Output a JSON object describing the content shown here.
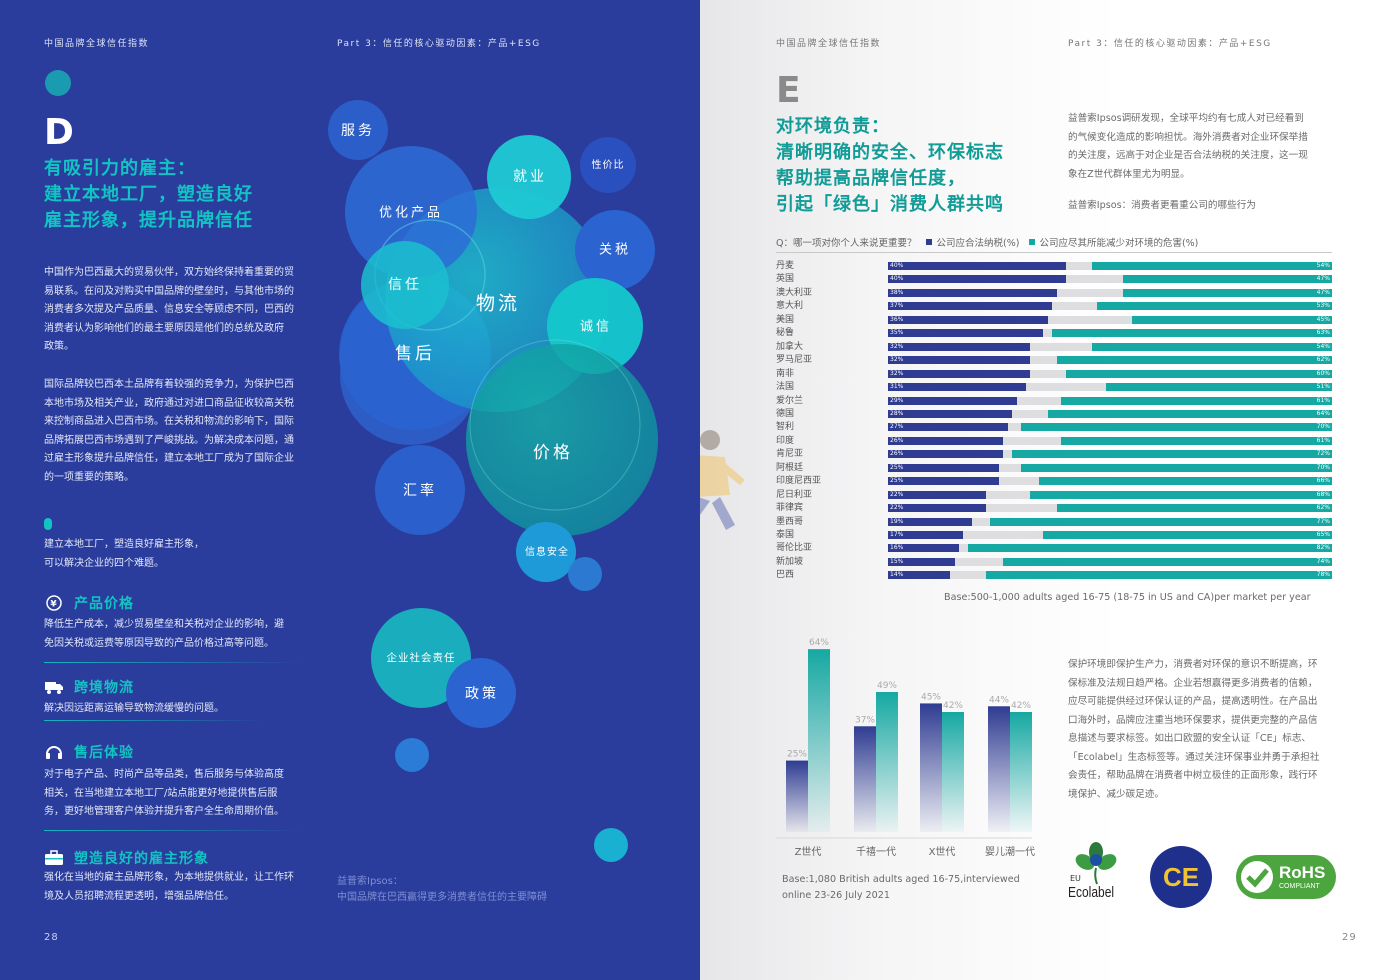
{
  "left_page": {
    "header_title": "中国品牌全球信任指数",
    "header_part": "Part 3：信任的核心驱动因素：产品+ESG",
    "letter": "D",
    "section_title": [
      "有吸引力的雇主：",
      "建立本地工厂，塑造良好",
      "雇主形象，提升品牌信任"
    ],
    "para1": [
      "中国作为巴西最大的贸易伙伴，双方始终保持着重要的贸",
      "易联系。在问及对购买中国品牌的壁垒时，与其他市场的",
      "消费者多次提及产品质量、信息安全等顾虑不同，巴西的",
      "消费者认为影响他们的最主要原因是他们的总统及政府",
      "政策。"
    ],
    "para2": [
      "国际品牌较巴西本土品牌有着较强的竞争力，为保护巴西",
      "本地市场及相关产业，政府通过对进口商品征收较高关税",
      "来控制商品进入巴西市场。在关税和物流的影响下，国际",
      "品牌拓展巴西市场遇到了严峻挑战。为解决成本问题，通",
      "过雇主形象提升品牌信任，建立本地工厂成为了国际企业",
      "的一项重要的策略。"
    ],
    "para3": [
      "建立本地工厂，塑造良好雇主形象，",
      "可以解决企业的四个难题。"
    ],
    "items": [
      {
        "icon": "yuan-icon",
        "title": "产品价格",
        "text": [
          "降低生产成本，减少贸易壁垒和关税对企业的影响，避",
          "免因关税或运费等原因导致的产品价格过高等问题。"
        ]
      },
      {
        "icon": "truck-icon",
        "title": "跨境物流",
        "text": [
          "解决因远距离运输导致物流缓慢的问题。"
        ]
      },
      {
        "icon": "headset-icon",
        "title": "售后体验",
        "text": [
          "对于电子产品、时尚产品等品类，售后服务与体验高度",
          "相关，在当地建立本地工厂/站点能更好地提供售后服",
          "务，更好地管理客户体验并提升客户全生命周期价值。"
        ]
      },
      {
        "icon": "briefcase-icon",
        "title": "塑造良好的雇主形象",
        "text": [
          "强化在当地的雇主品牌形象，为本地提供就业，让工作环",
          "境及人员招聘流程更透明，增强品牌信任。"
        ]
      }
    ],
    "bubbles": [
      "服务",
      "就业",
      "性价比",
      "优化产品",
      "关税",
      "信任",
      "物流",
      "诚信",
      "售后",
      "价格",
      "汇率",
      "信息安全",
      "企业社会责任",
      "政策"
    ],
    "source": [
      "益普索Ipsos：",
      "中国品牌在巴西赢得更多消费者信任的主要障碍"
    ],
    "page_number": "28",
    "colors": {
      "background": "#2a3d9c",
      "accent": "#13c3c3"
    }
  },
  "right_page": {
    "header_title": "中国品牌全球信任指数",
    "header_part": "Part 3：信任的核心驱动因素：产品+ESG",
    "letter": "E",
    "section_title": [
      "对环境负责：",
      "清晰明确的安全、环保标志",
      "帮助提高品牌信任度，",
      "引起「绿色」消费人群共鸣"
    ],
    "intro": [
      "益普索Ipsos调研发现，全球平均约有七成人对已经看到",
      "的气候变化造成的影响担忧。海外消费者对企业环保举措",
      "的关注度，远高于对企业是否合法纳税的关注度，这一现",
      "象在Z世代群体里尤为明显。"
    ],
    "chart_caption": "益普索Ipsos：消费者更看重公司的哪些行为",
    "question": "Q：哪一项对你个人来说更重要？",
    "legend": [
      "公司应合法纳税(%)",
      "公司应尽其所能减少对环境的危害(%)"
    ],
    "base1": "Base:500-1,000 adults aged 16-75 (18-75 in US and CA)per market per year",
    "base2": [
      "Base:1,080 British adults aged 16-75,interviewed",
      "online 23-26 July 2021"
    ],
    "para": [
      "保护环境即保护生产力，消费者对环保的意识不断提高，环",
      "保标准及法规日趋严格。企业若想赢得更多消费者的信赖，",
      "应尽可能提供经过环保认证的产品，提高透明性。在产品出",
      "口海外时，品牌应注重当地环保要求，提供更完整的产品信",
      "息描述与要求标签。如出口欧盟的安全认证「CE」标志、",
      "「Ecolabel」生态标签等。通过关注环保事业并勇于承担社",
      "会责任，帮助品牌在消费者中树立极佳的正面形象，践行环",
      "境保护、减少碳足迹。"
    ],
    "logos": {
      "ecolabel_eu": "EU",
      "ecolabel": "Ecolabel",
      "ce": "CE",
      "rohs": "RoHS",
      "rohs_sub": "COMPLIANT"
    },
    "page_number": "29",
    "colors": {
      "blue": "#2f3c92",
      "teal": "#16a8a2",
      "grey": "#dedee0"
    }
  },
  "chart_data": [
    {
      "type": "bar",
      "orientation": "horizontal",
      "title": "益普索Ipsos：消费者更看重公司的哪些行为",
      "categories": [
        "丹麦",
        "英国",
        "澳大利亚",
        "意大利",
        "美国",
        "秘鲁",
        "加拿大",
        "罗马尼亚",
        "南非",
        "法国",
        "爱尔兰",
        "德国",
        "智利",
        "印度",
        "肯尼亚",
        "阿根廷",
        "印度尼西亚",
        "尼日利亚",
        "菲律宾",
        "墨西哥",
        "泰国",
        "哥伦比亚",
        "新加坡",
        "巴西"
      ],
      "series": [
        {
          "name": "公司应合法纳税(%)",
          "values": [
            40,
            40,
            38,
            37,
            36,
            35,
            32,
            32,
            32,
            31,
            29,
            28,
            27,
            26,
            26,
            25,
            25,
            22,
            22,
            19,
            17,
            16,
            15,
            14
          ]
        },
        {
          "name": "公司应尽其所能减少对环境的危害(%)",
          "values": [
            54,
            47,
            47,
            53,
            45,
            63,
            54,
            62,
            60,
            51,
            61,
            64,
            70,
            61,
            72,
            70,
            66,
            68,
            62,
            77,
            65,
            82,
            74,
            78
          ]
        }
      ],
      "value_labels": {
        "blue": [
          "40%",
          "40%",
          "38%",
          "37%",
          "36%",
          "35%",
          "32%",
          "32%",
          "32%",
          "31%",
          "29%",
          "28%",
          "27%",
          "26%",
          "26%",
          "25%",
          "25%",
          "22%",
          "22%",
          "19%",
          "17%",
          "16%",
          "15%",
          "14%"
        ],
        "teal": [
          "54%",
          "47%",
          "47%",
          "53%",
          "45%",
          "63%",
          "54%",
          "62%",
          "60%",
          "51%",
          "61%",
          "64%",
          "70%",
          "61%",
          "72%",
          "70%",
          "66%",
          "68%",
          "62%",
          "77%",
          "65%",
          "82%",
          "74%",
          "78%"
        ]
      },
      "xlim": [
        0,
        100
      ],
      "legend_position": "top"
    },
    {
      "type": "bar",
      "categories": [
        "Z世代",
        "千禧一代",
        "X世代",
        "婴儿潮一代"
      ],
      "series": [
        {
          "values": [
            25,
            37,
            45,
            44
          ]
        },
        {
          "values": [
            64,
            49,
            42,
            42
          ]
        }
      ],
      "value_labels": {
        "a": [
          "25%",
          "37%",
          "45%",
          "44%"
        ],
        "b": [
          "64%",
          "49%",
          "42%",
          "42%"
        ]
      },
      "ylim": [
        0,
        70
      ],
      "grid": false
    }
  ]
}
